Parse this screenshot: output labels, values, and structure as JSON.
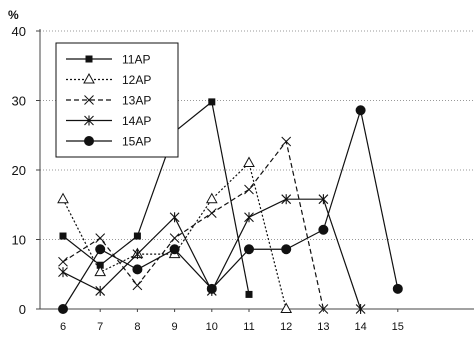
{
  "chart_data": {
    "type": "line",
    "title": "",
    "xlabel": "",
    "ylabel": "%",
    "ylim": [
      0,
      40
    ],
    "yticks": [
      0,
      10,
      20,
      30,
      40
    ],
    "categories": [
      "6",
      "7",
      "8",
      "9",
      "10",
      "11",
      "12",
      "13",
      "14",
      "15"
    ],
    "grid": "horizontal dotted",
    "legend_position": "top-left",
    "series": [
      {
        "name": "11AP",
        "marker": "square",
        "line": "solid",
        "points": [
          [
            6,
            10.5
          ],
          [
            7,
            6.3
          ],
          [
            8,
            10.5
          ],
          [
            9,
            25.5
          ],
          [
            10,
            29.8
          ],
          [
            11,
            2.1
          ]
        ]
      },
      {
        "name": "12AP",
        "marker": "triangle",
        "line": "dotted",
        "points": [
          [
            6,
            15.8
          ],
          [
            7,
            5.3
          ],
          [
            8,
            7.9
          ],
          [
            9,
            7.9
          ],
          [
            10,
            15.8
          ],
          [
            11,
            21.0
          ],
          [
            12,
            0
          ]
        ]
      },
      {
        "name": "13AP",
        "marker": "x",
        "line": "dashed",
        "points": [
          [
            6,
            6.8
          ],
          [
            7,
            10.2
          ],
          [
            8,
            3.4
          ],
          [
            9,
            10.2
          ],
          [
            10,
            13.8
          ],
          [
            11,
            17.2
          ],
          [
            12,
            24.1
          ],
          [
            13,
            0
          ]
        ]
      },
      {
        "name": "14AP",
        "marker": "asterisk",
        "line": "solid",
        "points": [
          [
            6,
            5.3
          ],
          [
            7,
            2.6
          ],
          [
            8,
            7.9
          ],
          [
            9,
            13.2
          ],
          [
            10,
            2.6
          ],
          [
            11,
            13.2
          ],
          [
            12,
            15.8
          ],
          [
            13,
            15.8
          ],
          [
            14,
            0
          ]
        ]
      },
      {
        "name": "15AP",
        "marker": "circle",
        "line": "solid",
        "points": [
          [
            6,
            0
          ],
          [
            7,
            8.6
          ],
          [
            8,
            5.7
          ],
          [
            9,
            8.6
          ],
          [
            10,
            2.9
          ],
          [
            11,
            8.6
          ],
          [
            12,
            8.6
          ],
          [
            13,
            11.4
          ],
          [
            14,
            28.6
          ],
          [
            15,
            2.9
          ]
        ]
      }
    ]
  }
}
